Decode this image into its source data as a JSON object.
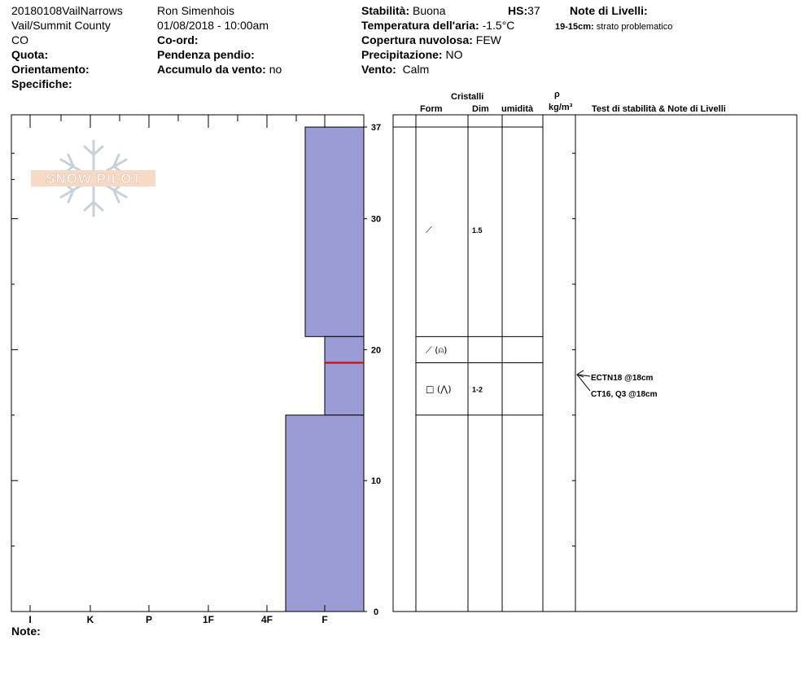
{
  "header": {
    "col1": {
      "name": "20180108VailNarrows",
      "county": "Vail/Summit County",
      "state": "CO"
    },
    "col2": {
      "observer": "Ron Simenhois",
      "datetime": "01/08/2018 - 10:00am"
    },
    "labels": {
      "quota": "Quota:",
      "orientamento": "Orientamento:",
      "specifiche": "Specifiche:",
      "coord": "Co-ord:",
      "pendenza": "Pendenza pendio:",
      "accumulo": "Accumulo da vento:",
      "stabilita": "Stabilità:",
      "temperatura": "Temperatura dell'aria:",
      "copertura": "Copertura nuvolosa:",
      "precipitazione": "Precipitazione:",
      "vento": "Vento:",
      "hs": "HS:",
      "note_livelli": "Note di Livelli:"
    },
    "values": {
      "accumulo": "no",
      "stabilita": "Buona",
      "temperatura": "-1.5°C",
      "copertura": "FEW",
      "precipitazione": "NO",
      "vento": "Calm",
      "hs": "37"
    },
    "layer_note": {
      "range": "19-15cm:",
      "text": "strato problematico"
    }
  },
  "logo": {
    "text": "SNOW PILOT"
  },
  "columns": {
    "cristalli": "Cristalli",
    "form": "Form",
    "dim": "Dim",
    "umidita": "umidità",
    "rho": "ρ",
    "density_unit": "kg/m³",
    "tests": "Test di stabilità & Note di Livelli"
  },
  "note_label": "Note:",
  "chart_data": {
    "type": "snow-profile",
    "y_unit": "cm",
    "ylim": [
      0,
      37
    ],
    "y_ticks": [
      "0",
      "10",
      "20",
      "30",
      "37"
    ],
    "hardness_ticks": [
      "I",
      "K",
      "P",
      "1F",
      "4F",
      "F"
    ],
    "layers": [
      {
        "top": 37,
        "bottom": 21,
        "hardness": "F",
        "form": "⟋",
        "size": "1.5"
      },
      {
        "top": 21,
        "bottom": 19,
        "hardness": "F",
        "form": "⟋ (⍝)",
        "size": ""
      },
      {
        "top": 19,
        "bottom": 15,
        "hardness": "F",
        "form": "□ (⋀)",
        "size": "1-2"
      },
      {
        "top": 15,
        "bottom": 0,
        "hardness": "4F",
        "form": "",
        "size": ""
      }
    ],
    "problem_layer_height": 19,
    "tests": [
      {
        "label": "ECTN18 @18cm",
        "height": 18
      },
      {
        "label": "CT16, Q3 @18cm",
        "height": 18
      }
    ],
    "colors": {
      "layer_fill": "#9b9bd6",
      "problem_line": "#cc0000"
    }
  }
}
